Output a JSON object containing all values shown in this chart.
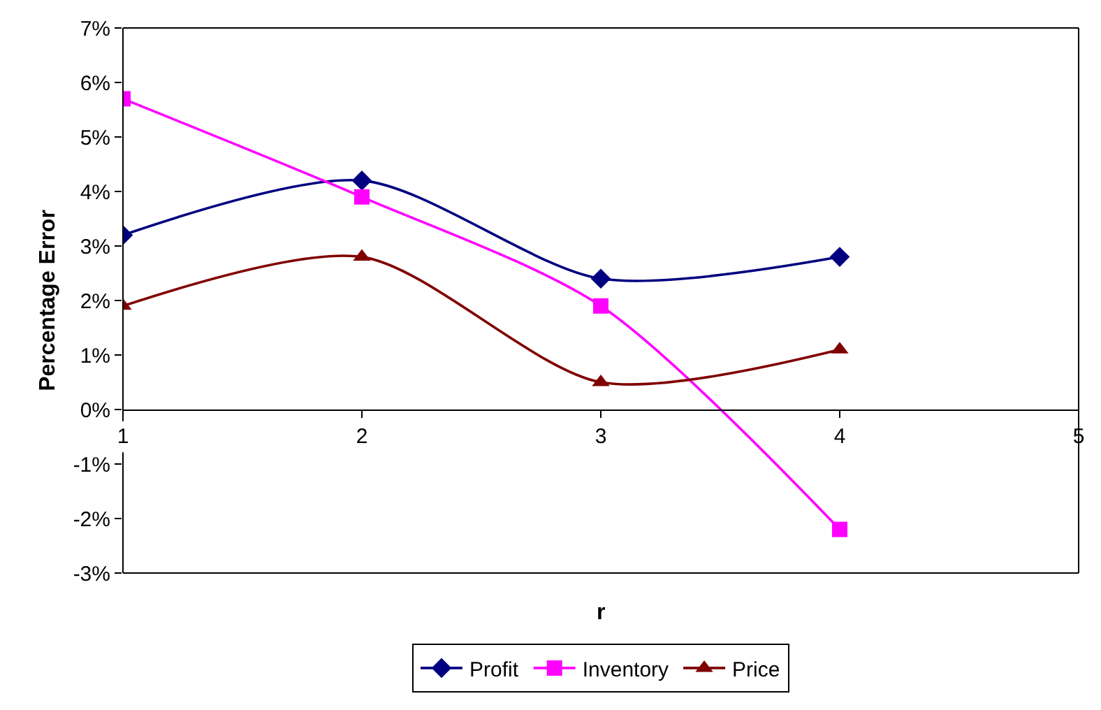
{
  "chart_data": {
    "type": "line",
    "ylabel": "Percentage Error",
    "xlabel": "r",
    "x": [
      1,
      2,
      3,
      4
    ],
    "series": [
      {
        "name": "Profit",
        "color": "#000080",
        "marker": "diamond",
        "values": [
          3.2,
          4.2,
          2.4,
          2.8
        ]
      },
      {
        "name": "Inventory",
        "color": "#ff00ff",
        "marker": "square",
        "values": [
          5.7,
          3.9,
          1.9,
          -2.2
        ]
      },
      {
        "name": "Price",
        "color": "#800000",
        "marker": "triangle",
        "values": [
          1.9,
          2.8,
          0.5,
          1.1
        ]
      }
    ],
    "xlim": [
      1,
      5
    ],
    "xticks": [
      1,
      2,
      3,
      4,
      5
    ],
    "ylim": [
      -3,
      7
    ],
    "yticks": [
      {
        "value": -3,
        "label": "-3%"
      },
      {
        "value": -2,
        "label": "-2%"
      },
      {
        "value": -1,
        "label": "-1%"
      },
      {
        "value": 0,
        "label": "0%"
      },
      {
        "value": 1,
        "label": "1%"
      },
      {
        "value": 2,
        "label": "2%"
      },
      {
        "value": 3,
        "label": "3%"
      },
      {
        "value": 4,
        "label": "4%"
      },
      {
        "value": 5,
        "label": "5%"
      },
      {
        "value": 6,
        "label": "6%"
      },
      {
        "value": 7,
        "label": "7%"
      }
    ],
    "grid": false,
    "legend": "bottom",
    "line_style": "solid"
  }
}
